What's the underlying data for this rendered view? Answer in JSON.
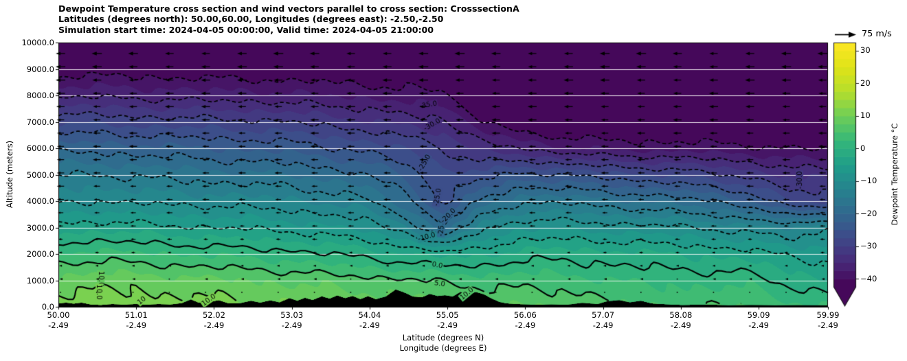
{
  "title_lines": [
    "Dewpoint Temperature cross section and wind vectors parallel to cross section: CrosssectionA",
    "Latitudes (degrees north): 50.00,60.00, Longitudes (degrees east): -2.50,-2.50",
    "Simulation start time: 2024-04-05 00:00:00, Valid time: 2024-04-05 21:00:00"
  ],
  "axes": {
    "y_label": "Altitude (meters)",
    "x_label_line1": "Latitude (degrees N)",
    "x_label_line2": "Longitude (degrees E)",
    "y_ticks": [
      "10000.0",
      "9000.0",
      "8000.0",
      "7000.0",
      "6000.0",
      "5000.0",
      "4000.0",
      "3000.0",
      "2000.0",
      "1000.0",
      "0.0"
    ],
    "x_ticks": [
      {
        "lat": "50.00",
        "lon": "-2.49"
      },
      {
        "lat": "51.01",
        "lon": "-2.49"
      },
      {
        "lat": "52.02",
        "lon": "-2.49"
      },
      {
        "lat": "53.03",
        "lon": "-2.49"
      },
      {
        "lat": "54.04",
        "lon": "-2.49"
      },
      {
        "lat": "55.05",
        "lon": "-2.49"
      },
      {
        "lat": "56.06",
        "lon": "-2.49"
      },
      {
        "lat": "57.07",
        "lon": "-2.49"
      },
      {
        "lat": "58.08",
        "lon": "-2.49"
      },
      {
        "lat": "59.09",
        "lon": "-2.49"
      },
      {
        "lat": "59.99",
        "lon": "-2.49"
      }
    ]
  },
  "wind_legend": {
    "label": "75 m/s",
    "reference_speed_ms": 75
  },
  "colorbar": {
    "label": "Dewpoint Temperature °C",
    "tick_labels": [
      "30",
      "20",
      "10",
      "0",
      "−10",
      "−20",
      "−30",
      "−40"
    ],
    "tick_values": [
      30,
      20,
      10,
      0,
      -10,
      -20,
      -30,
      -40
    ],
    "vmin": -42.5,
    "vmax": 32.5,
    "band_step": 2.5,
    "extend": "min"
  },
  "colors": {
    "background": "#ffffff",
    "terrain": "#000000",
    "contour_line": "#000000",
    "gridline": "rgba(255,255,255,0.9)",
    "arrow": "#000000",
    "viridis_stops": [
      [
        0.0,
        "#440154"
      ],
      [
        0.1,
        "#482878"
      ],
      [
        0.2,
        "#3e4989"
      ],
      [
        0.3,
        "#31688e"
      ],
      [
        0.4,
        "#26828e"
      ],
      [
        0.5,
        "#1f9e89"
      ],
      [
        0.6,
        "#35b779"
      ],
      [
        0.7,
        "#6ece58"
      ],
      [
        0.8,
        "#b5de2b"
      ],
      [
        0.9,
        "#dfe318"
      ],
      [
        1.0,
        "#fde725"
      ]
    ]
  },
  "chart_data": {
    "type": "heatmap",
    "subtype": "filled-contour-cross-section with wind quiver",
    "title": "Dewpoint Temperature cross section and wind vectors parallel to cross section: CrosssectionA",
    "xlabel": "Latitude (degrees N) / Longitude (degrees E)",
    "ylabel": "Altitude (meters)",
    "xlim": [
      50.0,
      59.99
    ],
    "ylim": [
      0,
      10000
    ],
    "grid_on": true,
    "legend_position": "colorbar-right",
    "color_range_c": [
      -42.5,
      32.5
    ],
    "fill_band_interval_c": 2.5,
    "line_levels_dashed_c": [
      -40,
      -35,
      -30,
      -25,
      -20,
      -15,
      -10,
      -5
    ],
    "line_levels_solid_c": [
      0,
      5,
      10
    ],
    "lat_points": [
      50,
      50.5,
      51,
      51.5,
      52,
      52.5,
      53,
      53.5,
      54,
      54.5,
      55,
      55.5,
      56,
      56.5,
      57,
      57.5,
      58,
      58.5,
      59,
      59.5,
      60
    ],
    "altitudes_m": [
      0,
      1000,
      2000,
      3000,
      4000,
      5000,
      6000,
      7000,
      8000,
      9000,
      10000
    ],
    "dewpoint_grid_c": [
      [
        11.5,
        8.5,
        3,
        -4,
        -10.5,
        -15,
        -21,
        -28,
        -35.5,
        -41.5,
        -44.5
      ],
      [
        12,
        9,
        3.5,
        -3.5,
        -10,
        -15,
        -21,
        -28,
        -35.5,
        -41.5,
        -44.5
      ],
      [
        11.5,
        9,
        3,
        -4,
        -10.5,
        -15.5,
        -21.5,
        -28.5,
        -36,
        -41.5,
        -44.5
      ],
      [
        11,
        8.5,
        2.5,
        -4.5,
        -11,
        -16,
        -22,
        -29,
        -36,
        -42,
        -45
      ],
      [
        11,
        8,
        2,
        -5,
        -11,
        -16.5,
        -22.5,
        -29,
        -36.5,
        -42,
        -45
      ],
      [
        10.5,
        7.5,
        1.5,
        -5.5,
        -11.5,
        -17,
        -23,
        -29.5,
        -36.5,
        -42,
        -45
      ],
      [
        10.5,
        7,
        1,
        -6,
        -12,
        -17.5,
        -23.5,
        -30,
        -37,
        -42.5,
        -45
      ],
      [
        10,
        6.5,
        0,
        -7,
        -13,
        -18.5,
        -24.5,
        -31,
        -37.5,
        -42.5,
        -45
      ],
      [
        9.5,
        6,
        -1,
        -8.5,
        -14.5,
        -20,
        -26,
        -32,
        -38,
        -43,
        -45.5
      ],
      [
        9,
        5.5,
        -2.5,
        -11.5,
        -19,
        -23,
        -27.5,
        -33.5,
        -39,
        -43,
        -45.5
      ],
      [
        8.5,
        4.5,
        -3.5,
        -20,
        -26,
        -27.5,
        -29.5,
        -34.5,
        -39.5,
        -43.5,
        -46
      ],
      [
        8,
        4,
        -3,
        -10.5,
        -19.5,
        -26.5,
        -33.5,
        -39.5,
        -42.5,
        -44.5,
        -46
      ],
      [
        7.5,
        4,
        -1.5,
        -8,
        -15.5,
        -24,
        -35,
        -43.5,
        -45,
        -45.5,
        -46.5
      ],
      [
        7,
        3.5,
        -1,
        -8,
        -15.5,
        -25,
        -37,
        -44,
        -45,
        -45.5,
        -46.5
      ],
      [
        7,
        3,
        -1.5,
        -8.5,
        -16.5,
        -26,
        -38,
        -44,
        -45.5,
        -46,
        -47
      ],
      [
        4.5,
        2,
        -2,
        -9,
        -17.5,
        -27,
        -38.5,
        -44.5,
        -45.5,
        -46,
        -47
      ],
      [
        5,
        2,
        -2.5,
        -9.5,
        -18.5,
        -28,
        -38.5,
        -44.5,
        -46,
        -46.5,
        -47
      ],
      [
        5,
        1.5,
        -3,
        -10.5,
        -20,
        -29.5,
        -39,
        -44.5,
        -46,
        -46.5,
        -47.5
      ],
      [
        5,
        1.5,
        -4,
        -11.5,
        -22.5,
        -31,
        -39.5,
        -45,
        -46.5,
        -47,
        -47.5
      ],
      [
        3.5,
        -1,
        -5.5,
        -13,
        -28,
        -33.5,
        -40,
        -45,
        -46.5,
        -47,
        -48
      ],
      [
        2.5,
        -2.5,
        -6,
        -10,
        -28.5,
        -33,
        -40.5,
        -45.5,
        -47,
        -47.5,
        -48
      ]
    ],
    "contour_labels": [
      {
        "text": "-35.0",
        "lat": 54.8,
        "alt": 7650,
        "rot": -10
      },
      {
        "text": "-30.0",
        "lat": 54.85,
        "alt": 6900,
        "rot": -30
      },
      {
        "text": "-25.0",
        "lat": 54.75,
        "alt": 5450,
        "rot": -60
      },
      {
        "text": "-25.0",
        "lat": 54.92,
        "alt": 4150,
        "rot": -80
      },
      {
        "text": "-25.0",
        "lat": 54.97,
        "alt": 3000,
        "rot": -87
      },
      {
        "text": "-20.0",
        "lat": 55.06,
        "alt": 3450,
        "rot": -45
      },
      {
        "text": "-10.0",
        "lat": 54.78,
        "alt": 2650,
        "rot": -15
      },
      {
        "text": "0.0",
        "lat": 54.92,
        "alt": 1580,
        "rot": 10
      },
      {
        "text": "5.0",
        "lat": 54.95,
        "alt": 880,
        "rot": 8
      },
      {
        "text": "10.0",
        "lat": 50.55,
        "alt": 1060,
        "rot": 90
      },
      {
        "text": "10.0",
        "lat": 50.53,
        "alt": 560,
        "rot": 90
      },
      {
        "text": "10",
        "lat": 51.08,
        "alt": 240,
        "rot": -40
      },
      {
        "text": "10.0",
        "lat": 51.95,
        "alt": 260,
        "rot": -35
      },
      {
        "text": "10.0",
        "lat": 55.3,
        "alt": 500,
        "rot": -40
      },
      {
        "text": "-30.0",
        "lat": 59.62,
        "alt": 4800,
        "rot": -90
      }
    ],
    "terrain_profile_lat_m": [
      [
        50.0,
        120
      ],
      [
        50.1,
        150
      ],
      [
        50.2,
        110
      ],
      [
        50.3,
        150
      ],
      [
        50.42,
        80
      ],
      [
        50.55,
        60
      ],
      [
        50.7,
        95
      ],
      [
        50.85,
        70
      ],
      [
        51.0,
        95
      ],
      [
        51.15,
        70
      ],
      [
        51.3,
        95
      ],
      [
        51.45,
        75
      ],
      [
        51.6,
        130
      ],
      [
        51.72,
        270
      ],
      [
        51.82,
        150
      ],
      [
        51.95,
        165
      ],
      [
        52.08,
        240
      ],
      [
        52.2,
        130
      ],
      [
        52.35,
        125
      ],
      [
        52.5,
        220
      ],
      [
        52.62,
        150
      ],
      [
        52.75,
        235
      ],
      [
        52.87,
        160
      ],
      [
        53.0,
        320
      ],
      [
        53.1,
        220
      ],
      [
        53.2,
        330
      ],
      [
        53.3,
        250
      ],
      [
        53.42,
        390
      ],
      [
        53.52,
        300
      ],
      [
        53.62,
        420
      ],
      [
        53.72,
        320
      ],
      [
        53.82,
        400
      ],
      [
        53.92,
        280
      ],
      [
        54.02,
        395
      ],
      [
        54.12,
        280
      ],
      [
        54.25,
        380
      ],
      [
        54.38,
        650
      ],
      [
        54.5,
        520
      ],
      [
        54.6,
        380
      ],
      [
        54.72,
        350
      ],
      [
        54.82,
        480
      ],
      [
        54.92,
        400
      ],
      [
        55.02,
        430
      ],
      [
        55.12,
        380
      ],
      [
        55.22,
        560
      ],
      [
        55.32,
        470
      ],
      [
        55.42,
        550
      ],
      [
        55.52,
        470
      ],
      [
        55.62,
        310
      ],
      [
        55.72,
        180
      ],
      [
        55.82,
        120
      ],
      [
        56.0,
        90
      ],
      [
        56.2,
        70
      ],
      [
        56.4,
        85
      ],
      [
        56.6,
        70
      ],
      [
        56.8,
        140
      ],
      [
        57.0,
        95
      ],
      [
        57.12,
        200
      ],
      [
        57.28,
        245
      ],
      [
        57.42,
        160
      ],
      [
        57.56,
        220
      ],
      [
        57.7,
        120
      ],
      [
        57.9,
        85
      ],
      [
        58.1,
        60
      ],
      [
        58.4,
        75
      ],
      [
        58.7,
        55
      ],
      [
        59.0,
        65
      ],
      [
        59.3,
        50
      ],
      [
        59.6,
        60
      ],
      [
        59.99,
        55
      ]
    ],
    "wind": {
      "direction": "all vectors point toward lower latitude (left)",
      "reference_speed_ms": 75,
      "row_speeds_ms": [
        34,
        33,
        32,
        31,
        30,
        29,
        28,
        27,
        26,
        25,
        24,
        23,
        21,
        19,
        17,
        14,
        10,
        6,
        3
      ]
    }
  }
}
